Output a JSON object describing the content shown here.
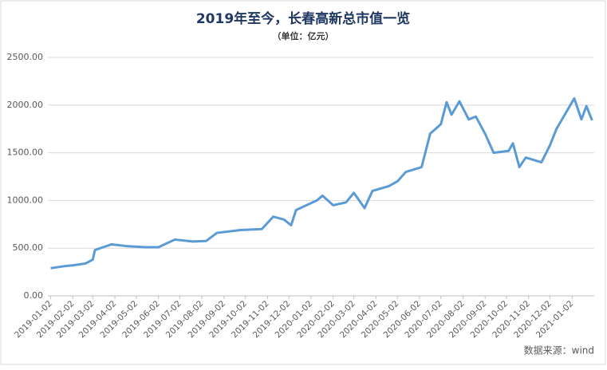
{
  "chart_data": {
    "type": "line",
    "title": "2019年至今，长春高新总市值一览",
    "subtitle": "（单位：亿元）",
    "source": "数据来源：wind",
    "x": [
      "2019-01-02",
      "2019-01-20",
      "2019-02-02",
      "2019-02-20",
      "2019-03-02",
      "2019-03-05",
      "2019-03-28",
      "2019-04-20",
      "2019-05-15",
      "2019-06-02",
      "2019-06-25",
      "2019-07-20",
      "2019-08-08",
      "2019-08-23",
      "2019-09-25",
      "2019-10-25",
      "2019-11-10",
      "2019-11-25",
      "2019-12-05",
      "2019-12-12",
      "2020-01-10",
      "2020-01-18",
      "2020-02-02",
      "2020-02-20",
      "2020-03-02",
      "2020-03-17",
      "2020-03-28",
      "2020-04-20",
      "2020-05-02",
      "2020-05-14",
      "2020-06-05",
      "2020-06-17",
      "2020-07-02",
      "2020-07-10",
      "2020-07-17",
      "2020-07-28",
      "2020-08-10",
      "2020-08-20",
      "2020-09-02",
      "2020-09-14",
      "2020-10-05",
      "2020-10-11",
      "2020-10-20",
      "2020-10-29",
      "2020-11-20",
      "2020-12-02",
      "2020-12-11",
      "2021-01-05",
      "2021-01-15",
      "2021-01-22",
      "2021-01-30"
    ],
    "series": [
      {
        "color": "#5b9bd5",
        "values": [
          290,
          310,
          320,
          340,
          380,
          480,
          540,
          520,
          510,
          510,
          590,
          570,
          575,
          660,
          690,
          700,
          830,
          800,
          740,
          900,
          1000,
          1050,
          950,
          980,
          1080,
          920,
          1100,
          1150,
          1200,
          1300,
          1350,
          1700,
          1800,
          2030,
          1900,
          2040,
          1850,
          1880,
          1700,
          1500,
          1520,
          1600,
          1350,
          1450,
          1400,
          1580,
          1750,
          2070,
          1850,
          1990,
          1840
        ]
      }
    ],
    "xlim": [
      "2018-12-29",
      "2021-02-02"
    ],
    "xticks": [
      "2019-01-02",
      "2019-02-02",
      "2019-03-02",
      "2019-04-02",
      "2019-05-02",
      "2019-06-02",
      "2019-07-02",
      "2019-08-02",
      "2019-09-02",
      "2019-10-02",
      "2019-11-02",
      "2019-12-02",
      "2020-01-02",
      "2020-02-02",
      "2020-03-02",
      "2020-04-02",
      "2020-05-02",
      "2020-06-02",
      "2020-07-02",
      "2020-08-02",
      "2020-09-02",
      "2020-10-02",
      "2020-11-02",
      "2020-12-02",
      "2021-01-02"
    ],
    "ylim": [
      0,
      2500
    ],
    "yticks": [
      {
        "value": 0,
        "label": "0.00"
      },
      {
        "value": 500,
        "label": "500.00"
      },
      {
        "value": 1000,
        "label": "1000.00"
      },
      {
        "value": 1500,
        "label": "1500.00"
      },
      {
        "value": 2000,
        "label": "2000.00"
      },
      {
        "value": 2500,
        "label": "2500.00"
      }
    ],
    "grid": true
  }
}
